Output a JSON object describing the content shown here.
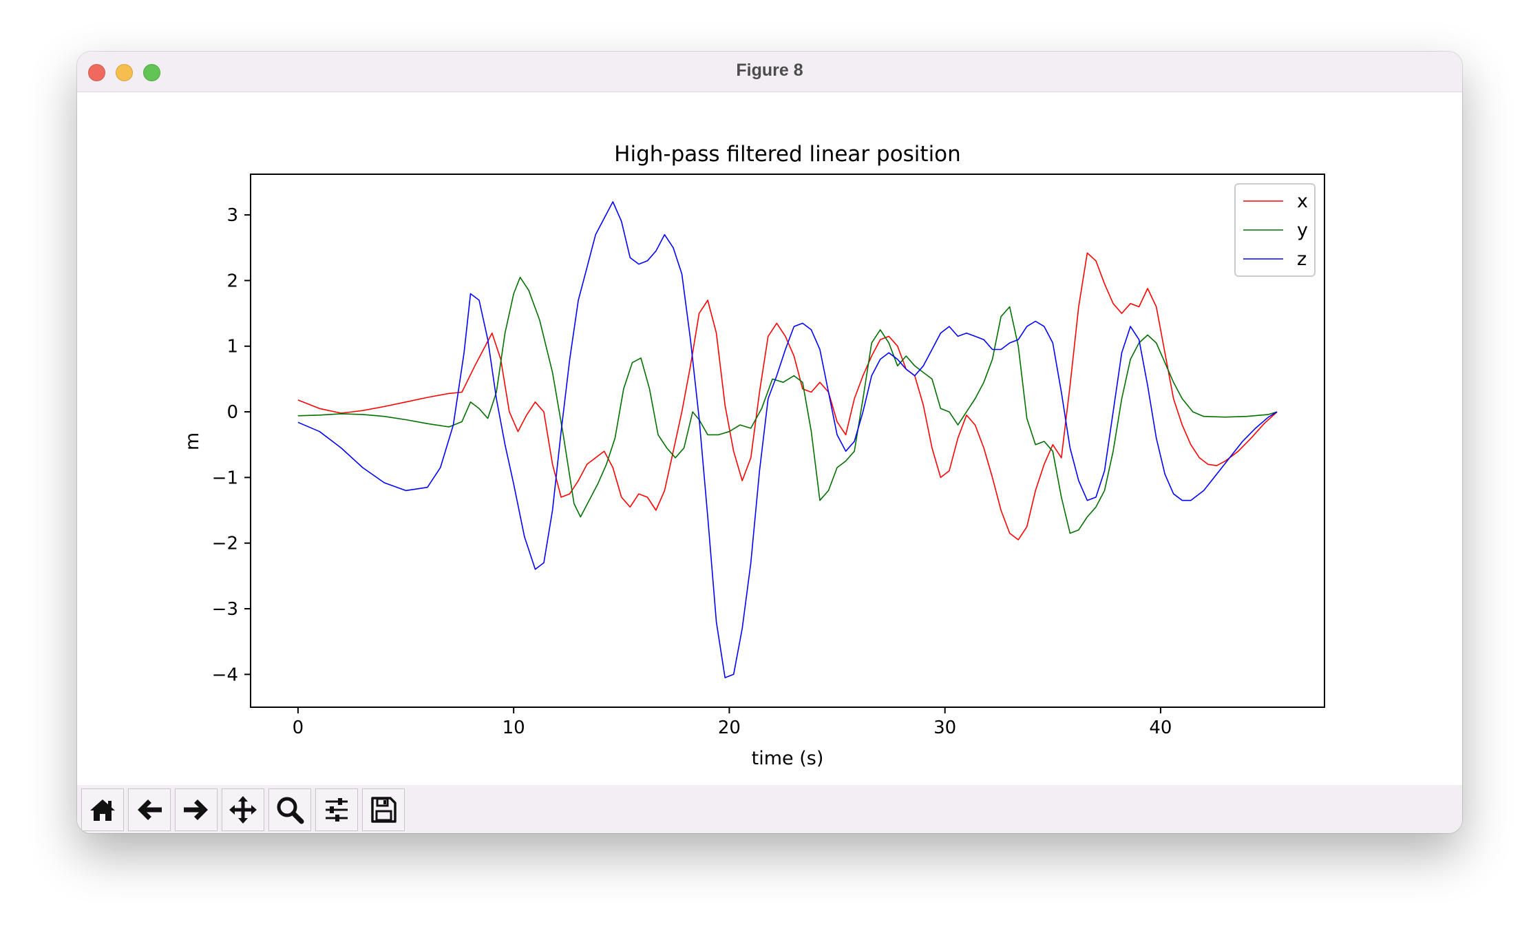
{
  "window": {
    "title": "Figure 8"
  },
  "toolbar": {
    "icons": [
      "home-icon",
      "back-arrow-icon",
      "forward-arrow-icon",
      "pan-move-icon",
      "zoom-magnifier-icon",
      "configure-subplots-icon",
      "save-floppy-icon"
    ]
  },
  "chart_data": {
    "type": "line",
    "title": "High-pass filtered linear position",
    "xlabel": "time (s)",
    "ylabel": "m",
    "xlim": [
      -2.2,
      47.6
    ],
    "ylim": [
      -4.5,
      3.62
    ],
    "xticks": [
      0,
      10,
      20,
      30,
      40
    ],
    "yticks": [
      3,
      2,
      1,
      0,
      -1,
      -2,
      -3,
      -4
    ],
    "xtick_labels": [
      "0",
      "10",
      "20",
      "30",
      "40"
    ],
    "ytick_labels": [
      "3",
      "2",
      "1",
      "0",
      "−1",
      "−2",
      "−3",
      "−4"
    ],
    "legend_position": "top-right",
    "grid": false,
    "series": [
      {
        "name": "x",
        "color": "#ff0000",
        "points": [
          [
            0,
            0.18
          ],
          [
            1,
            0.05
          ],
          [
            2,
            -0.02
          ],
          [
            3,
            0.02
          ],
          [
            4,
            0.08
          ],
          [
            5,
            0.15
          ],
          [
            6,
            0.22
          ],
          [
            7,
            0.28
          ],
          [
            7.6,
            0.3
          ],
          [
            8.2,
            0.7
          ],
          [
            8.6,
            0.95
          ],
          [
            9,
            1.2
          ],
          [
            9.4,
            0.8
          ],
          [
            9.8,
            0.0
          ],
          [
            10.2,
            -0.3
          ],
          [
            10.6,
            -0.05
          ],
          [
            11,
            0.15
          ],
          [
            11.4,
            0.0
          ],
          [
            11.8,
            -0.8
          ],
          [
            12.2,
            -1.3
          ],
          [
            12.6,
            -1.25
          ],
          [
            13,
            -1.05
          ],
          [
            13.4,
            -0.8
          ],
          [
            13.8,
            -0.7
          ],
          [
            14.2,
            -0.6
          ],
          [
            14.6,
            -0.85
          ],
          [
            15,
            -1.3
          ],
          [
            15.4,
            -1.45
          ],
          [
            15.8,
            -1.25
          ],
          [
            16.2,
            -1.3
          ],
          [
            16.6,
            -1.5
          ],
          [
            17,
            -1.2
          ],
          [
            17.4,
            -0.6
          ],
          [
            17.8,
            0.0
          ],
          [
            18.2,
            0.7
          ],
          [
            18.6,
            1.5
          ],
          [
            19,
            1.7
          ],
          [
            19.4,
            1.2
          ],
          [
            19.8,
            0.1
          ],
          [
            20.2,
            -0.6
          ],
          [
            20.6,
            -1.05
          ],
          [
            21,
            -0.7
          ],
          [
            21.4,
            0.3
          ],
          [
            21.8,
            1.15
          ],
          [
            22.2,
            1.35
          ],
          [
            22.6,
            1.15
          ],
          [
            23,
            0.85
          ],
          [
            23.4,
            0.35
          ],
          [
            23.8,
            0.3
          ],
          [
            24.2,
            0.45
          ],
          [
            24.6,
            0.3
          ],
          [
            25,
            -0.15
          ],
          [
            25.4,
            -0.35
          ],
          [
            25.8,
            0.2
          ],
          [
            26.2,
            0.55
          ],
          [
            26.6,
            0.85
          ],
          [
            27,
            1.1
          ],
          [
            27.4,
            1.15
          ],
          [
            27.8,
            1.0
          ],
          [
            28.2,
            0.65
          ],
          [
            28.6,
            0.55
          ],
          [
            29,
            0.1
          ],
          [
            29.4,
            -0.55
          ],
          [
            29.8,
            -1.0
          ],
          [
            30.2,
            -0.9
          ],
          [
            30.6,
            -0.4
          ],
          [
            31,
            -0.05
          ],
          [
            31.4,
            -0.2
          ],
          [
            31.8,
            -0.55
          ],
          [
            32.2,
            -1.0
          ],
          [
            32.6,
            -1.5
          ],
          [
            33,
            -1.85
          ],
          [
            33.4,
            -1.95
          ],
          [
            33.8,
            -1.75
          ],
          [
            34.2,
            -1.2
          ],
          [
            34.6,
            -0.8
          ],
          [
            35,
            -0.5
          ],
          [
            35.4,
            -0.7
          ],
          [
            35.8,
            0.4
          ],
          [
            36.2,
            1.6
          ],
          [
            36.6,
            2.42
          ],
          [
            37,
            2.3
          ],
          [
            37.4,
            1.95
          ],
          [
            37.8,
            1.65
          ],
          [
            38.2,
            1.5
          ],
          [
            38.6,
            1.65
          ],
          [
            39,
            1.6
          ],
          [
            39.4,
            1.88
          ],
          [
            39.8,
            1.6
          ],
          [
            40.2,
            0.9
          ],
          [
            40.6,
            0.2
          ],
          [
            41,
            -0.2
          ],
          [
            41.4,
            -0.5
          ],
          [
            41.8,
            -0.7
          ],
          [
            42.2,
            -0.8
          ],
          [
            42.6,
            -0.82
          ],
          [
            43,
            -0.75
          ],
          [
            43.6,
            -0.6
          ],
          [
            44.2,
            -0.4
          ],
          [
            44.8,
            -0.18
          ],
          [
            45.4,
            0.0
          ]
        ]
      },
      {
        "name": "y",
        "color": "#007000",
        "points": [
          [
            0,
            -0.06
          ],
          [
            1,
            -0.05
          ],
          [
            2,
            -0.03
          ],
          [
            3,
            -0.04
          ],
          [
            4,
            -0.07
          ],
          [
            5,
            -0.12
          ],
          [
            6,
            -0.18
          ],
          [
            7,
            -0.23
          ],
          [
            7.6,
            -0.15
          ],
          [
            8,
            0.15
          ],
          [
            8.4,
            0.05
          ],
          [
            8.8,
            -0.1
          ],
          [
            9.2,
            0.3
          ],
          [
            9.6,
            1.2
          ],
          [
            10,
            1.8
          ],
          [
            10.3,
            2.05
          ],
          [
            10.7,
            1.85
          ],
          [
            11.2,
            1.4
          ],
          [
            11.8,
            0.6
          ],
          [
            12.3,
            -0.35
          ],
          [
            12.8,
            -1.4
          ],
          [
            13.1,
            -1.6
          ],
          [
            13.5,
            -1.35
          ],
          [
            13.9,
            -1.1
          ],
          [
            14.3,
            -0.8
          ],
          [
            14.7,
            -0.4
          ],
          [
            15.1,
            0.35
          ],
          [
            15.5,
            0.75
          ],
          [
            15.9,
            0.82
          ],
          [
            16.3,
            0.35
          ],
          [
            16.7,
            -0.35
          ],
          [
            17.1,
            -0.55
          ],
          [
            17.5,
            -0.7
          ],
          [
            17.9,
            -0.55
          ],
          [
            18.3,
            0.0
          ],
          [
            18.6,
            -0.12
          ],
          [
            19,
            -0.35
          ],
          [
            19.5,
            -0.35
          ],
          [
            20,
            -0.3
          ],
          [
            20.5,
            -0.2
          ],
          [
            21,
            -0.25
          ],
          [
            21.5,
            0.05
          ],
          [
            22,
            0.5
          ],
          [
            22.5,
            0.45
          ],
          [
            23,
            0.55
          ],
          [
            23.4,
            0.45
          ],
          [
            23.8,
            -0.3
          ],
          [
            24.2,
            -1.35
          ],
          [
            24.6,
            -1.2
          ],
          [
            25,
            -0.85
          ],
          [
            25.4,
            -0.75
          ],
          [
            25.8,
            -0.6
          ],
          [
            26.2,
            0.2
          ],
          [
            26.6,
            1.05
          ],
          [
            27,
            1.25
          ],
          [
            27.4,
            1.05
          ],
          [
            27.8,
            0.7
          ],
          [
            28.2,
            0.85
          ],
          [
            28.6,
            0.7
          ],
          [
            29,
            0.6
          ],
          [
            29.4,
            0.5
          ],
          [
            29.8,
            0.05
          ],
          [
            30.2,
            0.0
          ],
          [
            30.6,
            -0.2
          ],
          [
            31,
            0.0
          ],
          [
            31.4,
            0.2
          ],
          [
            31.8,
            0.45
          ],
          [
            32.2,
            0.8
          ],
          [
            32.6,
            1.45
          ],
          [
            33,
            1.6
          ],
          [
            33.4,
            1.0
          ],
          [
            33.8,
            -0.1
          ],
          [
            34.2,
            -0.5
          ],
          [
            34.6,
            -0.45
          ],
          [
            35,
            -0.6
          ],
          [
            35.4,
            -1.3
          ],
          [
            35.8,
            -1.85
          ],
          [
            36.2,
            -1.8
          ],
          [
            36.6,
            -1.6
          ],
          [
            37,
            -1.45
          ],
          [
            37.4,
            -1.2
          ],
          [
            37.8,
            -0.6
          ],
          [
            38.2,
            0.2
          ],
          [
            38.6,
            0.8
          ],
          [
            39,
            1.05
          ],
          [
            39.4,
            1.17
          ],
          [
            39.8,
            1.05
          ],
          [
            40.2,
            0.75
          ],
          [
            40.6,
            0.45
          ],
          [
            41,
            0.2
          ],
          [
            41.5,
            0.0
          ],
          [
            42,
            -0.07
          ],
          [
            43,
            -0.08
          ],
          [
            44,
            -0.07
          ],
          [
            45,
            -0.04
          ],
          [
            45.4,
            0.0
          ]
        ]
      },
      {
        "name": "z",
        "color": "#0000ff",
        "points": [
          [
            0,
            -0.16
          ],
          [
            1,
            -0.3
          ],
          [
            2,
            -0.55
          ],
          [
            3,
            -0.85
          ],
          [
            4,
            -1.08
          ],
          [
            5,
            -1.2
          ],
          [
            6,
            -1.15
          ],
          [
            6.6,
            -0.85
          ],
          [
            7.2,
            -0.2
          ],
          [
            7.7,
            0.9
          ],
          [
            8,
            1.8
          ],
          [
            8.4,
            1.7
          ],
          [
            8.8,
            1.1
          ],
          [
            9.2,
            0.2
          ],
          [
            9.6,
            -0.5
          ],
          [
            10,
            -1.1
          ],
          [
            10.5,
            -1.9
          ],
          [
            11,
            -2.4
          ],
          [
            11.4,
            -2.3
          ],
          [
            11.8,
            -1.5
          ],
          [
            12.2,
            -0.3
          ],
          [
            12.6,
            0.8
          ],
          [
            13,
            1.7
          ],
          [
            13.4,
            2.2
          ],
          [
            13.8,
            2.7
          ],
          [
            14.2,
            2.95
          ],
          [
            14.6,
            3.2
          ],
          [
            15,
            2.9
          ],
          [
            15.4,
            2.35
          ],
          [
            15.8,
            2.25
          ],
          [
            16.2,
            2.3
          ],
          [
            16.6,
            2.45
          ],
          [
            17,
            2.7
          ],
          [
            17.4,
            2.5
          ],
          [
            17.8,
            2.1
          ],
          [
            18.2,
            1.1
          ],
          [
            18.6,
            -0.1
          ],
          [
            19,
            -1.6
          ],
          [
            19.4,
            -3.2
          ],
          [
            19.8,
            -4.05
          ],
          [
            20.2,
            -4.0
          ],
          [
            20.6,
            -3.3
          ],
          [
            21,
            -2.3
          ],
          [
            21.4,
            -0.9
          ],
          [
            21.8,
            0.2
          ],
          [
            22.2,
            0.55
          ],
          [
            22.6,
            0.95
          ],
          [
            23,
            1.3
          ],
          [
            23.4,
            1.35
          ],
          [
            23.8,
            1.25
          ],
          [
            24.2,
            0.95
          ],
          [
            24.6,
            0.3
          ],
          [
            25,
            -0.35
          ],
          [
            25.4,
            -0.6
          ],
          [
            25.8,
            -0.45
          ],
          [
            26.2,
            0.0
          ],
          [
            26.6,
            0.55
          ],
          [
            27,
            0.8
          ],
          [
            27.4,
            0.9
          ],
          [
            27.8,
            0.8
          ],
          [
            28.2,
            0.65
          ],
          [
            28.6,
            0.55
          ],
          [
            29,
            0.7
          ],
          [
            29.4,
            0.95
          ],
          [
            29.8,
            1.2
          ],
          [
            30.2,
            1.3
          ],
          [
            30.6,
            1.15
          ],
          [
            31,
            1.2
          ],
          [
            31.4,
            1.15
          ],
          [
            31.8,
            1.1
          ],
          [
            32.2,
            0.95
          ],
          [
            32.6,
            0.95
          ],
          [
            33,
            1.05
          ],
          [
            33.4,
            1.1
          ],
          [
            33.8,
            1.3
          ],
          [
            34.2,
            1.38
          ],
          [
            34.6,
            1.3
          ],
          [
            35,
            1.05
          ],
          [
            35.4,
            0.3
          ],
          [
            35.8,
            -0.55
          ],
          [
            36.2,
            -1.05
          ],
          [
            36.6,
            -1.35
          ],
          [
            37,
            -1.3
          ],
          [
            37.4,
            -0.9
          ],
          [
            37.8,
            0.0
          ],
          [
            38.2,
            0.9
          ],
          [
            38.6,
            1.3
          ],
          [
            39,
            1.1
          ],
          [
            39.4,
            0.4
          ],
          [
            39.8,
            -0.4
          ],
          [
            40.2,
            -0.95
          ],
          [
            40.6,
            -1.25
          ],
          [
            41,
            -1.35
          ],
          [
            41.4,
            -1.35
          ],
          [
            42,
            -1.2
          ],
          [
            42.6,
            -0.95
          ],
          [
            43.2,
            -0.7
          ],
          [
            43.8,
            -0.45
          ],
          [
            44.4,
            -0.25
          ],
          [
            45,
            -0.08
          ],
          [
            45.4,
            0.0
          ]
        ]
      }
    ]
  }
}
